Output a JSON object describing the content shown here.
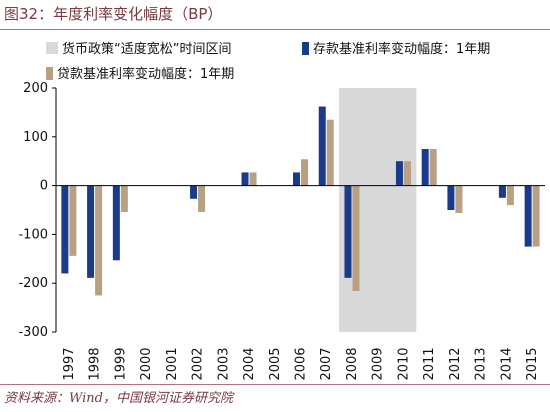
{
  "figure": {
    "title": "图32：年度利率变化幅度（BP）",
    "source": "资料来源：Wind，中国银河证券研究院"
  },
  "chart_data": {
    "type": "bar",
    "categories": [
      "1997",
      "1998",
      "1999",
      "2000",
      "2001",
      "2002",
      "2003",
      "2004",
      "2005",
      "2006",
      "2007",
      "2008",
      "2009",
      "2010",
      "2011",
      "2012",
      "2013",
      "2014",
      "2015"
    ],
    "series": [
      {
        "name": "存款基准利率变动幅度：1年期",
        "color": "#1a3a8a",
        "values": [
          -180,
          -189,
          -153,
          0,
          0,
          -27,
          0,
          27,
          0,
          27,
          162,
          -189,
          0,
          50,
          75,
          -50,
          0,
          -25,
          -125
        ]
      },
      {
        "name": "贷款基准利率变动幅度：1年期",
        "color": "#b8a083",
        "values": [
          -144,
          -225,
          -54,
          0,
          0,
          -54,
          0,
          27,
          0,
          54,
          135,
          -216,
          0,
          50,
          75,
          -56,
          0,
          -40,
          -125
        ]
      }
    ],
    "shaded_region": {
      "label": "货币政策“适度宽松”时间区间",
      "from": "2008",
      "to": "2010",
      "color": "#d9d9d9"
    },
    "ylim": [
      -300,
      200
    ],
    "yticks": [
      -300,
      -200,
      -100,
      0,
      100,
      200
    ],
    "xlabel": "",
    "ylabel": "",
    "legend_position": "top",
    "grid": false
  }
}
